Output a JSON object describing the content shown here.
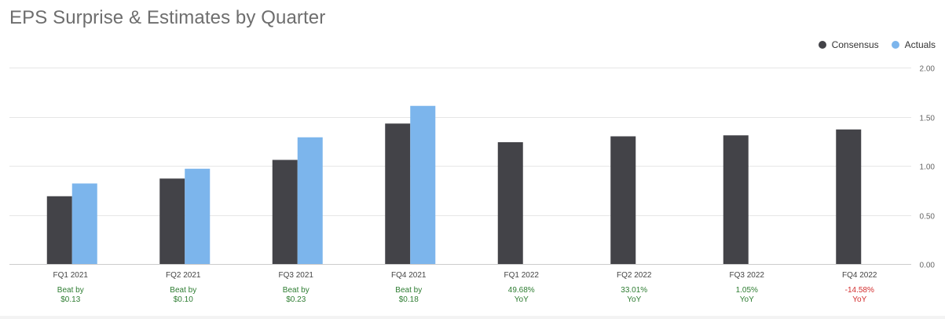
{
  "title": "EPS Surprise & Estimates by Quarter",
  "legend": {
    "items": [
      {
        "label": "Consensus",
        "color": "#434348"
      },
      {
        "label": "Actuals",
        "color": "#7cb5ec"
      }
    ]
  },
  "colors": {
    "consensus": "#434348",
    "actuals": "#7cb5ec",
    "grid": "#e6e6e6",
    "axis_text": "#666666",
    "positive": "#2e7d32",
    "negative": "#d32f2f"
  },
  "chart_data": {
    "type": "bar",
    "categories": [
      "FQ1 2021",
      "FQ2 2021",
      "FQ3 2021",
      "FQ4 2021",
      "FQ1 2022",
      "FQ2 2022",
      "FQ3 2022",
      "FQ4 2022"
    ],
    "series": [
      {
        "name": "Consensus",
        "values": [
          0.69,
          0.87,
          1.06,
          1.43,
          1.24,
          1.3,
          1.31,
          1.37
        ]
      },
      {
        "name": "Actuals",
        "values": [
          0.82,
          0.97,
          1.29,
          1.61,
          null,
          null,
          null,
          null
        ]
      }
    ],
    "annotations": [
      {
        "line1": "Beat by",
        "line2": "$0.13",
        "tone": "positive"
      },
      {
        "line1": "Beat by",
        "line2": "$0.10",
        "tone": "positive"
      },
      {
        "line1": "Beat by",
        "line2": "$0.23",
        "tone": "positive"
      },
      {
        "line1": "Beat by",
        "line2": "$0.18",
        "tone": "positive"
      },
      {
        "line1": "49.68%",
        "line2": "YoY",
        "tone": "positive"
      },
      {
        "line1": "33.01%",
        "line2": "YoY",
        "tone": "positive"
      },
      {
        "line1": "1.05%",
        "line2": "YoY",
        "tone": "positive"
      },
      {
        "line1": "-14.58%",
        "line2": "YoY",
        "tone": "negative"
      }
    ],
    "y_ticks": [
      "0.00",
      "0.50",
      "1.00",
      "1.50",
      "2.00"
    ],
    "ylim": [
      0,
      2
    ],
    "grid": true,
    "legend_position": "top-right",
    "xlabel": "",
    "ylabel": ""
  }
}
